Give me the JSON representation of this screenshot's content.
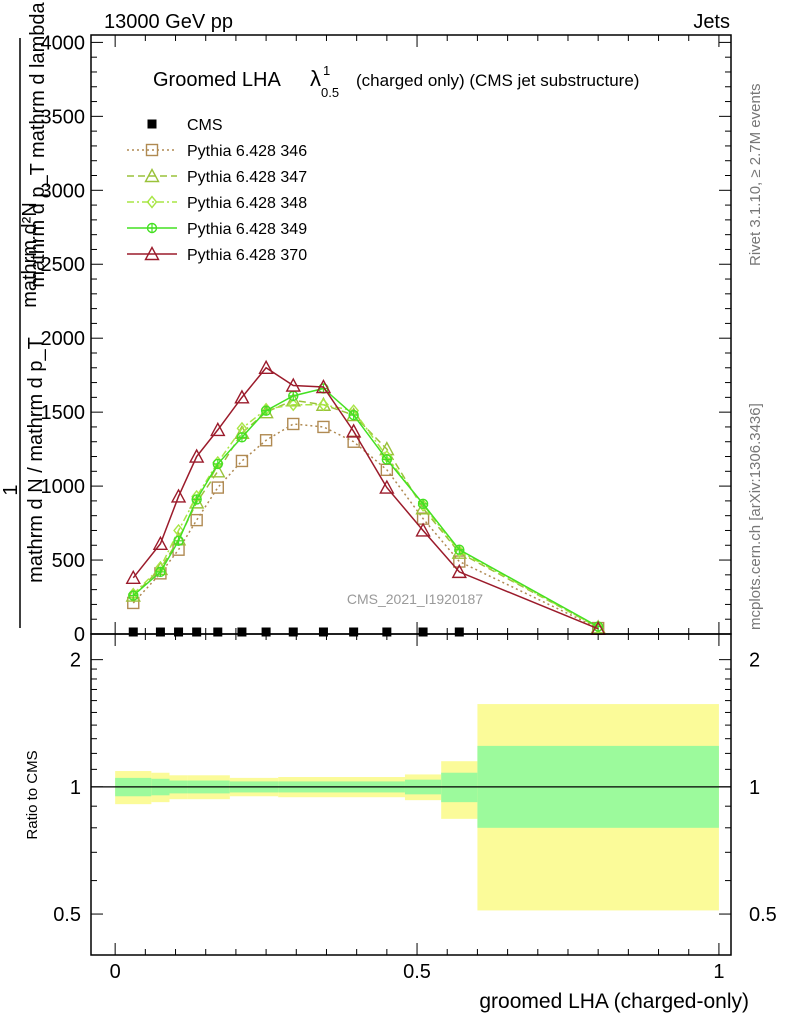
{
  "header": {
    "left": "13000 GeV pp",
    "right": "Jets",
    "side_rivet": "Rivet 3.1.10, ≥ 2.7M events",
    "side_mcplots": "mcplots.cern.ch [arXiv:1306.3436]",
    "watermark": "CMS_2021_I1920187"
  },
  "chart_data": [
    {
      "type": "line",
      "title_main": "Groomed LHA",
      "title_lambda": "λ",
      "title_sup": "1",
      "title_sub": "0.5",
      "title_rest": "(charged only) (CMS jet substructure)",
      "ylabel_top": "mathrm d²N",
      "ylabel_top2": "mathrm d p_T mathrm d lambda",
      "ylabel_one": "1",
      "ylabel_bottom": "mathrm d N / mathrm d p_T",
      "xlim": [
        -0.04,
        1.02
      ],
      "ylim": [
        0,
        4050
      ],
      "yticks": [
        {
          "v": 0,
          "label": "0"
        },
        {
          "v": 500,
          "label": "500"
        },
        {
          "v": 1000,
          "label": "1000"
        },
        {
          "v": 1500,
          "label": "1500"
        },
        {
          "v": 2000,
          "label": "2000"
        },
        {
          "v": 2500,
          "label": "2500"
        },
        {
          "v": 3000,
          "label": "3000"
        },
        {
          "v": 3500,
          "label": "3500"
        },
        {
          "v": 4000,
          "label": "4000"
        }
      ],
      "legend_position": "top-left",
      "data_markers_x": [
        0.03,
        0.075,
        0.105,
        0.135,
        0.17,
        0.21,
        0.25,
        0.295,
        0.345,
        0.395,
        0.45,
        0.51,
        0.57
      ],
      "series": [
        {
          "name": "CMS",
          "color": "#000000",
          "marker": "square",
          "line": "none",
          "x": [
            0.03,
            0.075,
            0.105,
            0.135,
            0.17,
            0.21,
            0.25,
            0.295,
            0.345,
            0.395,
            0.45,
            0.51,
            0.57
          ],
          "y": [
            0,
            0,
            0,
            0,
            0,
            0,
            0,
            0,
            0,
            0,
            0,
            0,
            0
          ]
        },
        {
          "name": "Pythia 6.428 346",
          "color": "#b08a52",
          "marker": "open-square",
          "line": "dotted",
          "x": [
            0.03,
            0.075,
            0.105,
            0.135,
            0.17,
            0.21,
            0.25,
            0.295,
            0.345,
            0.395,
            0.45,
            0.51,
            0.57,
            0.8
          ],
          "y": [
            210,
            410,
            570,
            770,
            990,
            1170,
            1310,
            1420,
            1400,
            1300,
            1110,
            780,
            490,
            40
          ]
        },
        {
          "name": "Pythia 6.428 347",
          "color": "#9ac23a",
          "marker": "open-triangle",
          "line": "dashed",
          "x": [
            0.03,
            0.075,
            0.105,
            0.135,
            0.17,
            0.21,
            0.25,
            0.295,
            0.345,
            0.395,
            0.45,
            0.51,
            0.57,
            0.8
          ],
          "y": [
            260,
            440,
            640,
            890,
            1100,
            1360,
            1500,
            1580,
            1550,
            1480,
            1250,
            850,
            550,
            45
          ]
        },
        {
          "name": "Pythia 6.428 348",
          "color": "#a8e645",
          "marker": "open-diamond",
          "line": "dashdot",
          "x": [
            0.03,
            0.075,
            0.105,
            0.135,
            0.17,
            0.21,
            0.25,
            0.295,
            0.345,
            0.395,
            0.45,
            0.51,
            0.57,
            0.8
          ],
          "y": [
            270,
            450,
            700,
            930,
            1160,
            1390,
            1520,
            1550,
            1550,
            1510,
            1200,
            870,
            560,
            45
          ]
        },
        {
          "name": "Pythia 6.428 349",
          "color": "#44e022",
          "marker": "open-circle-cross",
          "line": "solid",
          "x": [
            0.03,
            0.075,
            0.105,
            0.135,
            0.17,
            0.21,
            0.25,
            0.295,
            0.345,
            0.395,
            0.45,
            0.51,
            0.57,
            0.8
          ],
          "y": [
            260,
            420,
            630,
            910,
            1150,
            1330,
            1510,
            1610,
            1660,
            1480,
            1180,
            880,
            570,
            50
          ]
        },
        {
          "name": "Pythia 6.428 370",
          "color": "#9b1b2b",
          "marker": "open-triangle",
          "line": "solid",
          "x": [
            0.03,
            0.075,
            0.105,
            0.135,
            0.17,
            0.21,
            0.25,
            0.295,
            0.345,
            0.395,
            0.45,
            0.51,
            0.57,
            0.8
          ],
          "y": [
            380,
            610,
            930,
            1200,
            1380,
            1600,
            1800,
            1680,
            1670,
            1370,
            990,
            700,
            420,
            35
          ]
        }
      ]
    },
    {
      "type": "area",
      "ylabel": "Ratio to CMS",
      "xlabel": "groomed LHA (charged-only)",
      "xlim": [
        -0.04,
        1.02
      ],
      "ylim": [
        0.4,
        2.3
      ],
      "yscale": "log",
      "yticks": [
        {
          "v": 0.5,
          "label": "0.5"
        },
        {
          "v": 1,
          "label": "1"
        },
        {
          "v": 2,
          "label": "2"
        }
      ],
      "xticks": [
        {
          "v": 0,
          "label": "0"
        },
        {
          "v": 0.5,
          "label": "0.5"
        },
        {
          "v": 1,
          "label": "1"
        }
      ],
      "reference_line": 1,
      "bins": [
        {
          "lo": 0.0,
          "hi": 0.06,
          "stat_lo": 0.95,
          "stat_hi": 1.05,
          "tot_lo": 0.91,
          "tot_hi": 1.09
        },
        {
          "lo": 0.06,
          "hi": 0.09,
          "stat_lo": 0.955,
          "stat_hi": 1.045,
          "tot_lo": 0.92,
          "tot_hi": 1.08
        },
        {
          "lo": 0.09,
          "hi": 0.12,
          "stat_lo": 0.965,
          "stat_hi": 1.035,
          "tot_lo": 0.935,
          "tot_hi": 1.065
        },
        {
          "lo": 0.12,
          "hi": 0.19,
          "stat_lo": 0.965,
          "stat_hi": 1.035,
          "tot_lo": 0.935,
          "tot_hi": 1.065
        },
        {
          "lo": 0.19,
          "hi": 0.27,
          "stat_lo": 0.97,
          "stat_hi": 1.03,
          "tot_lo": 0.95,
          "tot_hi": 1.05
        },
        {
          "lo": 0.27,
          "hi": 0.48,
          "stat_lo": 0.97,
          "stat_hi": 1.03,
          "tot_lo": 0.945,
          "tot_hi": 1.055
        },
        {
          "lo": 0.48,
          "hi": 0.54,
          "stat_lo": 0.96,
          "stat_hi": 1.04,
          "tot_lo": 0.93,
          "tot_hi": 1.07
        },
        {
          "lo": 0.54,
          "hi": 0.6,
          "stat_lo": 0.92,
          "stat_hi": 1.08,
          "tot_lo": 0.84,
          "tot_hi": 1.15
        },
        {
          "lo": 0.6,
          "hi": 1.0,
          "stat_lo": 0.8,
          "stat_hi": 1.25,
          "tot_lo": 0.51,
          "tot_hi": 1.57
        }
      ],
      "colors": {
        "stat": "#9cfa9c",
        "tot": "#fbfb99"
      }
    }
  ]
}
